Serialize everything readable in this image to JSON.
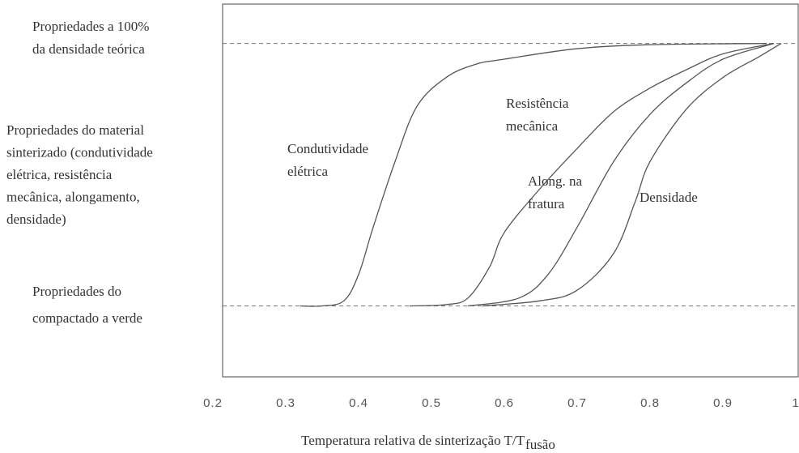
{
  "chart_data": {
    "type": "line",
    "xlabel": "Temperatura relativa de sinterização T/T",
    "xlabel_sub": "fusão",
    "ylabel": "Propriedades do material\nsinterizado (condutividade\nelétrica, resistência\nmecânica, alongamento,\ndensidade)",
    "xlim": [
      0.2,
      1
    ],
    "xticks": [
      0.2,
      0.3,
      0.4,
      0.5,
      0.6,
      0.7,
      0.8,
      0.9,
      1
    ],
    "ylim": [
      -0.27,
      1.15
    ],
    "yticks": [
      {
        "value": 1,
        "label": "Propriedades a 100%\nda densidade teórica"
      },
      {
        "value": 0,
        "label": "Propriedades do\ncompactado a verde"
      }
    ],
    "color": "#555555",
    "series": [
      {
        "name": "Condutividade\nelétrica",
        "x": [
          0.32,
          0.35,
          0.38,
          0.4,
          0.42,
          0.45,
          0.48,
          0.52,
          0.56,
          0.6,
          0.7,
          0.8,
          0.96
        ],
        "values": [
          0,
          0,
          0.02,
          0.12,
          0.3,
          0.55,
          0.76,
          0.87,
          0.92,
          0.94,
          0.98,
          0.995,
          1
        ]
      },
      {
        "name": "Resistência\nmecânica",
        "x": [
          0.47,
          0.52,
          0.55,
          0.58,
          0.6,
          0.65,
          0.7,
          0.75,
          0.8,
          0.85,
          0.9,
          0.97
        ],
        "values": [
          0,
          0.005,
          0.03,
          0.15,
          0.28,
          0.45,
          0.6,
          0.74,
          0.83,
          0.9,
          0.96,
          1
        ]
      },
      {
        "name": "Along. na\nfratura",
        "x": [
          0.55,
          0.62,
          0.66,
          0.7,
          0.75,
          0.8,
          0.85,
          0.9,
          0.97
        ],
        "values": [
          0,
          0.03,
          0.12,
          0.3,
          0.55,
          0.73,
          0.85,
          0.94,
          1
        ]
      },
      {
        "name": "Densidade",
        "x": [
          0.57,
          0.65,
          0.7,
          0.75,
          0.78,
          0.8,
          0.85,
          0.9,
          0.95,
          0.98
        ],
        "values": [
          0,
          0.02,
          0.06,
          0.2,
          0.4,
          0.55,
          0.75,
          0.87,
          0.95,
          1
        ]
      }
    ]
  }
}
